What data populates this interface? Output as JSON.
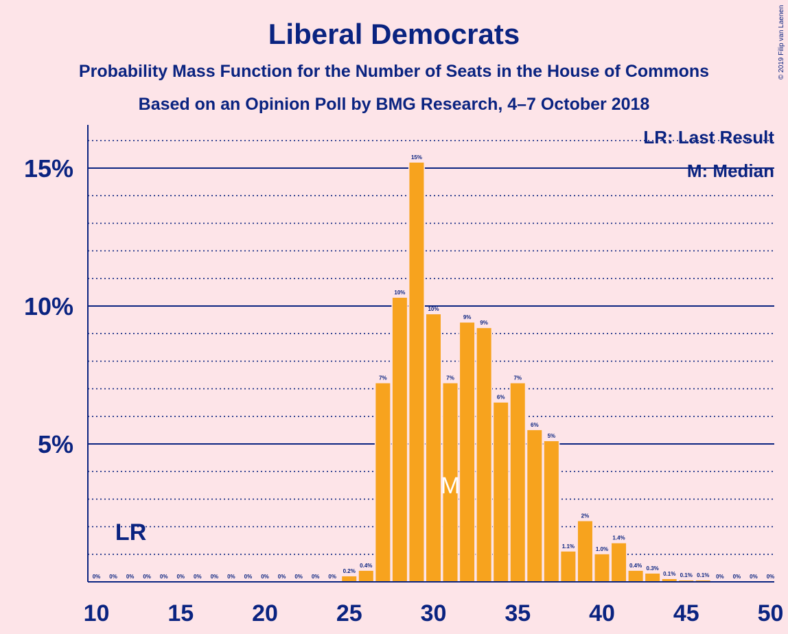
{
  "header": {
    "title": "Liberal Democrats",
    "subtitle1": "Probability Mass Function for the Number of Seats in the House of Commons",
    "subtitle2": "Based on an Opinion Poll by BMG Research, 4–7 October 2018",
    "copyright": "© 2019 Filip van Laenen"
  },
  "legend": {
    "lr": "LR: Last Result",
    "m": "M: Median"
  },
  "colors": {
    "background": "#fde4e8",
    "bar": "#f7a31e",
    "text": "#0a2380"
  },
  "chart_data": {
    "type": "bar",
    "xlabel": "",
    "ylabel": "",
    "xlim": [
      10,
      50
    ],
    "ylim": [
      0,
      16.5
    ],
    "x_ticks": [
      {
        "value": 10,
        "label": "10"
      },
      {
        "value": 15,
        "label": "15"
      },
      {
        "value": 20,
        "label": "20"
      },
      {
        "value": 25,
        "label": "25"
      },
      {
        "value": 30,
        "label": "30"
      },
      {
        "value": 35,
        "label": "35"
      },
      {
        "value": 40,
        "label": "40"
      },
      {
        "value": 45,
        "label": "45"
      },
      {
        "value": 50,
        "label": "50"
      }
    ],
    "y_ticks": [
      {
        "value": 5,
        "label": "5%"
      },
      {
        "value": 10,
        "label": "10%"
      },
      {
        "value": 15,
        "label": "15%"
      }
    ],
    "y_minor_gridlines": [
      1,
      2,
      3,
      4,
      6,
      7,
      8,
      9,
      11,
      12,
      13,
      14,
      16
    ],
    "seats": [
      10,
      11,
      12,
      13,
      14,
      15,
      16,
      17,
      18,
      19,
      20,
      21,
      22,
      23,
      24,
      25,
      26,
      27,
      28,
      29,
      30,
      31,
      32,
      33,
      34,
      35,
      36,
      37,
      38,
      39,
      40,
      41,
      42,
      43,
      44,
      45,
      46,
      47,
      48,
      49,
      50
    ],
    "values": [
      0,
      0,
      0,
      0,
      0,
      0,
      0,
      0,
      0,
      0,
      0,
      0,
      0,
      0,
      0,
      0.2,
      0.4,
      7.2,
      10.3,
      15.2,
      9.7,
      7.2,
      9.4,
      9.2,
      6.5,
      7.2,
      5.5,
      5.1,
      1.1,
      2.2,
      1.0,
      1.4,
      0.4,
      0.3,
      0.1,
      0.05,
      0.05,
      0,
      0,
      0,
      0
    ],
    "labels": [
      "0%",
      "0%",
      "0%",
      "0%",
      "0%",
      "0%",
      "0%",
      "0%",
      "0%",
      "0%",
      "0%",
      "0%",
      "0%",
      "0%",
      "0%",
      "0.2%",
      "0.4%",
      "7%",
      "10%",
      "15%",
      "10%",
      "7%",
      "9%",
      "9%",
      "6%",
      "7%",
      "6%",
      "5%",
      "1.1%",
      "2%",
      "1.0%",
      "1.4%",
      "0.4%",
      "0.3%",
      "0.1%",
      "0.1%",
      "0.1%",
      "0%",
      "0%",
      "0%",
      "0%"
    ],
    "last_result": {
      "seat": 12,
      "label": "LR"
    },
    "median": {
      "seat": 31,
      "label": "M"
    }
  }
}
